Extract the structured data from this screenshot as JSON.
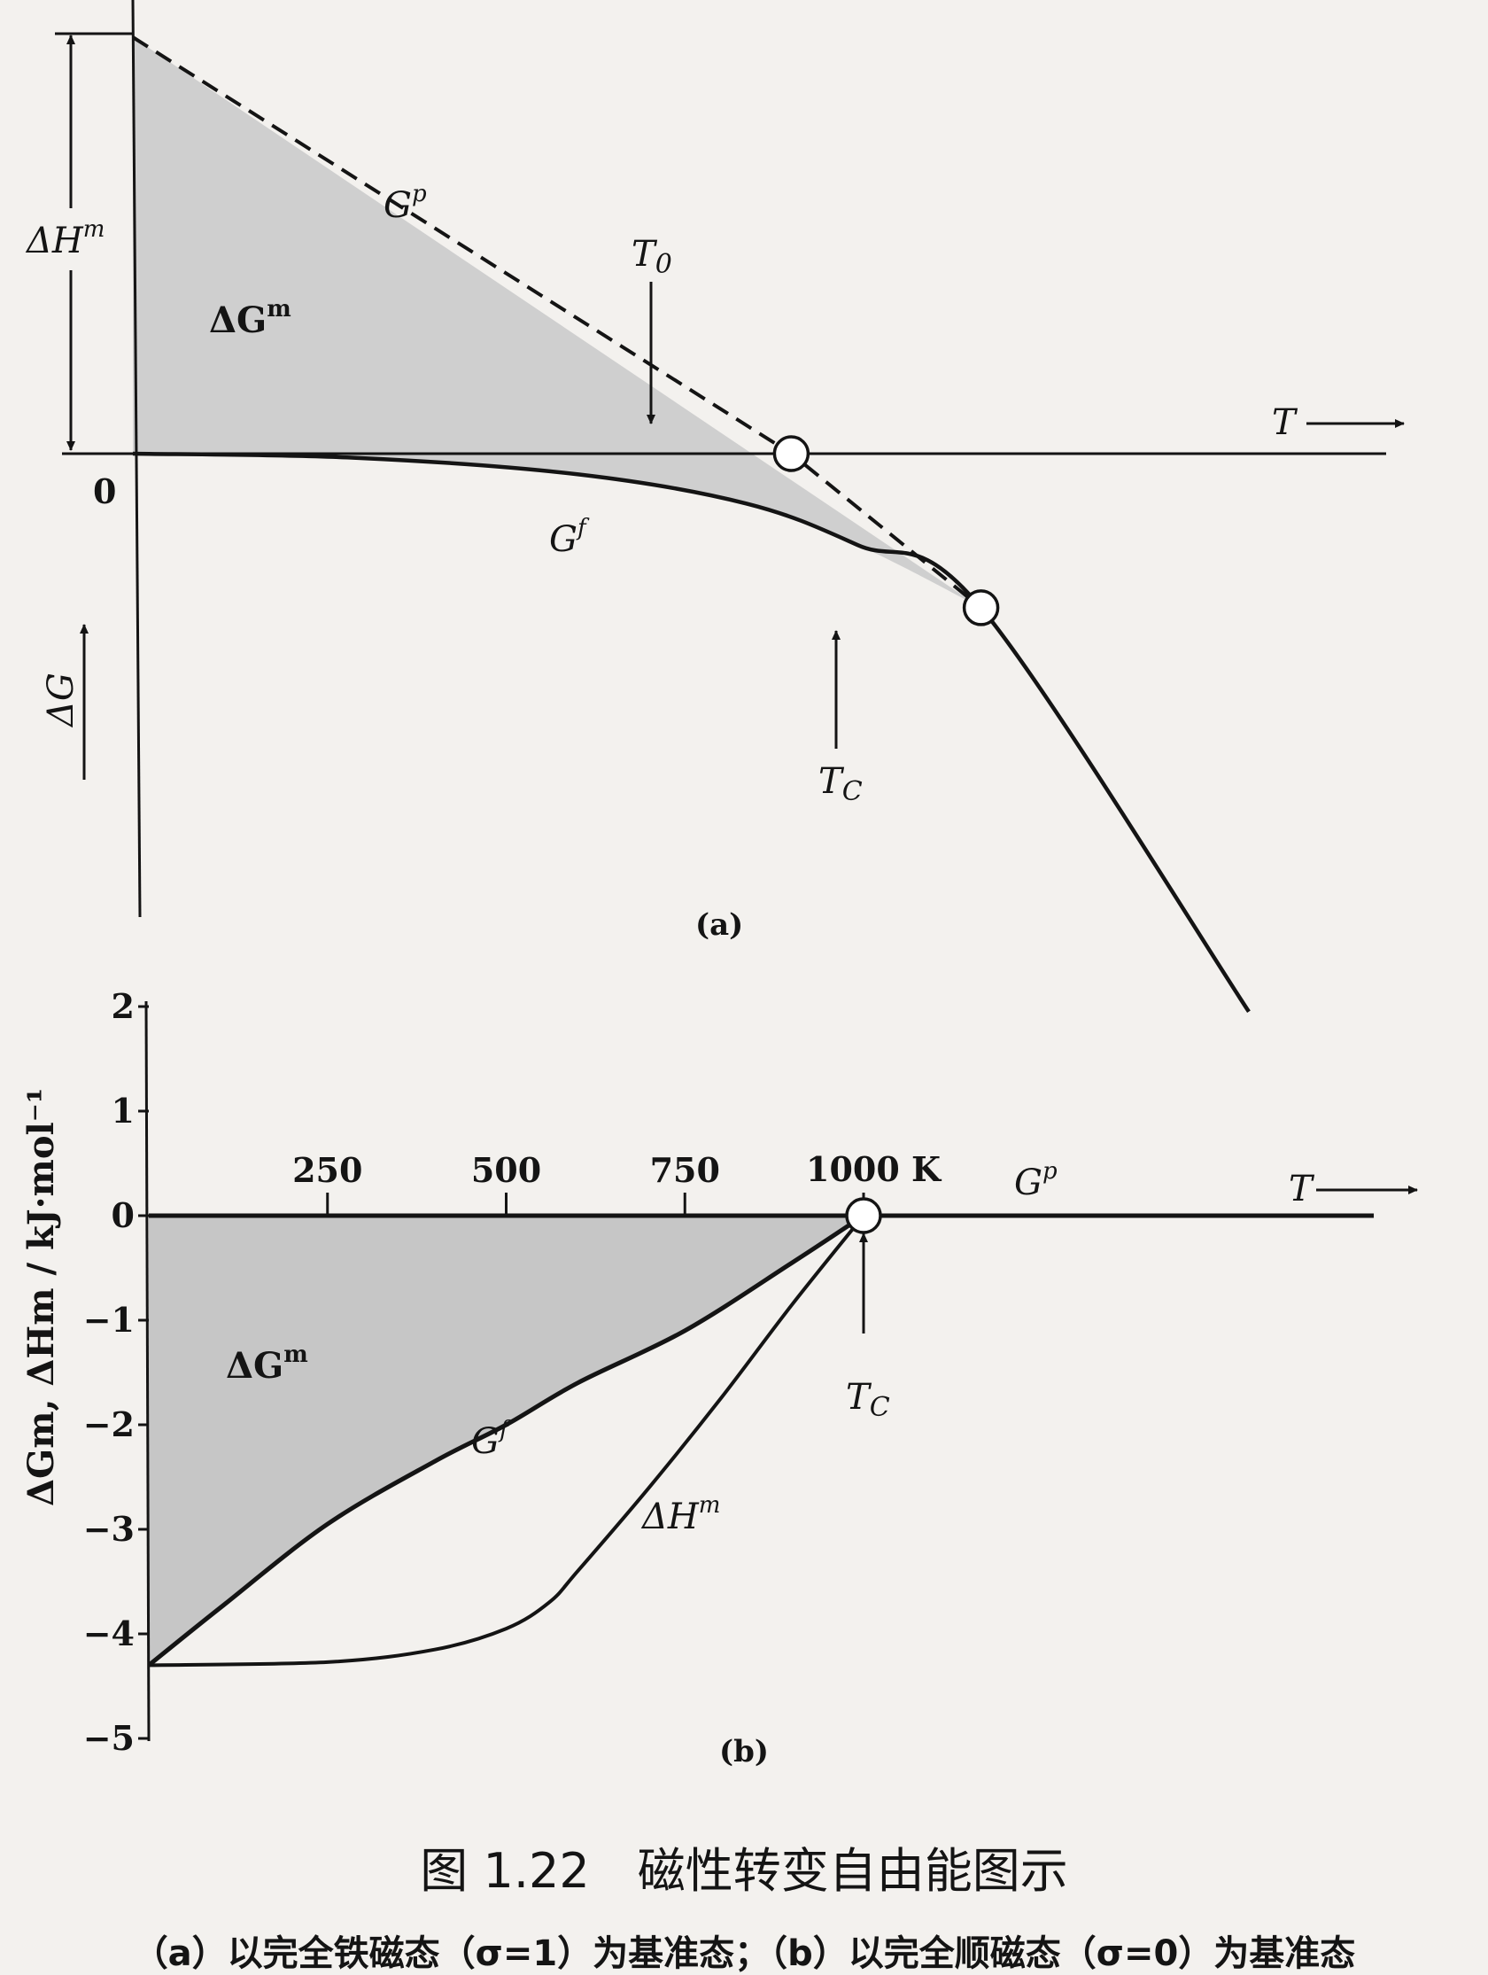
{
  "chart_data": [
    {
      "panel": "(a)",
      "type": "line",
      "labels": {
        "gp": "G",
        "gp_sup": "p",
        "gf": "G",
        "gf_sup": "f",
        "dgm": "ΔG",
        "dgm_sup": "m",
        "dhm": "ΔH",
        "dhm_sup": "m",
        "t0": "T",
        "t0_sub": "0",
        "tc": "T",
        "tc_sub": "C",
        "taxis": "T",
        "origin": "0",
        "yaxis": "ΔG"
      },
      "series": [
        {
          "name": "Gp",
          "style": "dashed",
          "x": [
            0,
            0.59,
            0.76
          ],
          "y": [
            1.0,
            0.0,
            -0.37
          ]
        },
        {
          "name": "Gf",
          "style": "solid",
          "x": [
            0,
            0.2,
            0.4,
            0.55,
            0.65,
            0.76,
            1.0
          ],
          "y": [
            0.0,
            -0.01,
            -0.05,
            -0.12,
            -0.22,
            -0.37,
            -1.34
          ]
        }
      ],
      "markers": [
        {
          "name": "T0",
          "x": 0.59,
          "y": 0.0
        },
        {
          "name": "TC",
          "x": 0.76,
          "y": -0.37
        }
      ]
    },
    {
      "panel": "(b)",
      "type": "line",
      "xlabel": "T",
      "ylabel": "ΔGm, ΔHm / kJ·mol⁻¹",
      "x_unit": "K",
      "xlim": [
        0,
        1000
      ],
      "ylim": [
        -5,
        2
      ],
      "x_ticks": [
        250,
        500,
        750,
        1000
      ],
      "y_ticks": [
        2,
        1,
        0,
        -1,
        -2,
        -3,
        -4,
        -5
      ],
      "series": [
        {
          "name": "Gp",
          "x": [
            0,
            1000,
            1720
          ],
          "y": [
            0,
            0,
            0
          ]
        },
        {
          "name": "Gf",
          "x": [
            0,
            100,
            250,
            400,
            500,
            600,
            750,
            900,
            1000
          ],
          "y": [
            -4.3,
            -3.75,
            -2.95,
            -2.35,
            -2.0,
            -1.6,
            -1.1,
            -0.45,
            0
          ]
        },
        {
          "name": "ΔHm",
          "x": [
            0,
            250,
            400,
            500,
            560,
            600,
            700,
            800,
            900,
            1000
          ],
          "y": [
            -4.3,
            -4.27,
            -4.15,
            -3.95,
            -3.7,
            -3.4,
            -2.6,
            -1.75,
            -0.85,
            0
          ]
        }
      ],
      "markers": [
        {
          "name": "TC",
          "x": 1000,
          "y": 0
        }
      ],
      "labels": {
        "gp": "G",
        "gp_sup": "p",
        "gf": "G",
        "gf_sup": "f",
        "dgm": "ΔG",
        "dgm_sup": "m",
        "dhm": "ΔH",
        "dhm_sup": "m",
        "tc": "T",
        "tc_sub": "C",
        "taxis": "T",
        "x1000": "1000 K"
      }
    }
  ],
  "caption": {
    "title": "图 1.22　磁性转变自由能图示",
    "subtitle": "（a）以完全铁磁态（σ=1）为基准态；（b）以完全顺磁态（σ=0）为基准态"
  }
}
